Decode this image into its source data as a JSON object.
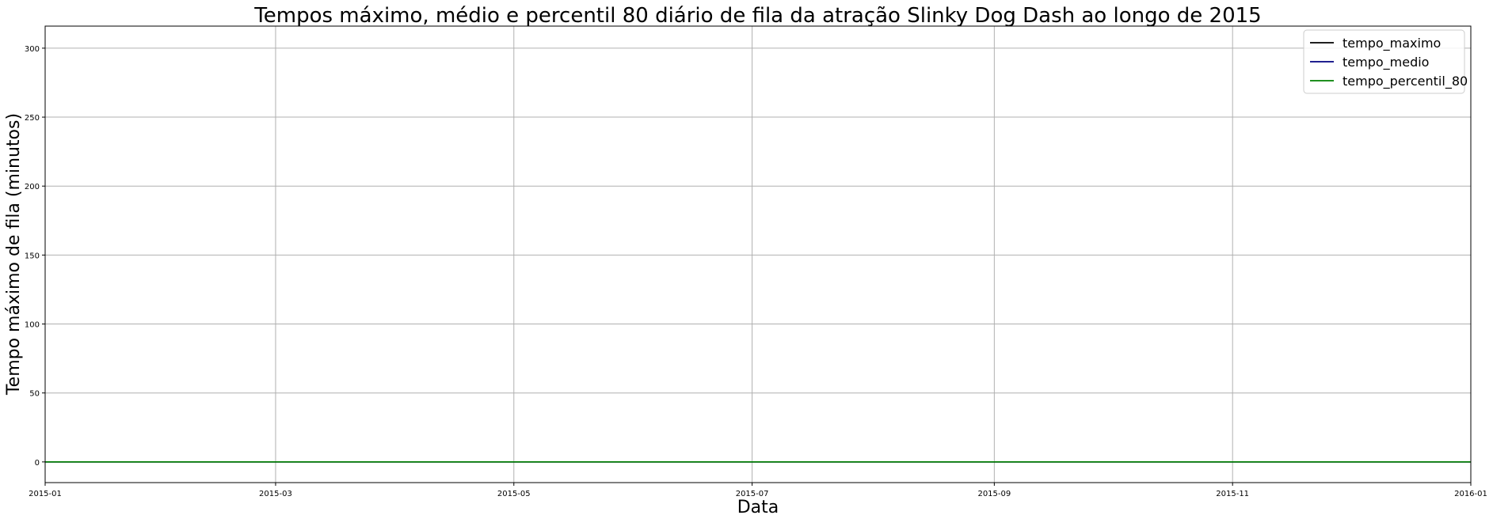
{
  "chart_data": {
    "type": "line",
    "title": "Tempos máximo, médio e percentil 80 diário de fila da atração Slinky Dog Dash ao longo de 2015",
    "xlabel": "Data",
    "ylabel": "Tempo máximo de fila (minutos)",
    "xlim": [
      "2015-01-01",
      "2016-01-01"
    ],
    "ylim": [
      -15,
      316
    ],
    "x_ticks": [
      "2015-01",
      "2015-03",
      "2015-05",
      "2015-07",
      "2015-09",
      "2015-11",
      "2016-01"
    ],
    "y_ticks": [
      0,
      50,
      100,
      150,
      200,
      250,
      300
    ],
    "grid": true,
    "legend_position": "top-right",
    "x": [
      "2015-01-01",
      "2016-01-01"
    ],
    "series": [
      {
        "name": "tempo_maximo",
        "color": "#000000",
        "values": [
          0,
          0
        ]
      },
      {
        "name": "tempo_medio",
        "color": "#000080",
        "values": [
          0,
          0
        ]
      },
      {
        "name": "tempo_percentil_80",
        "color": "#008000",
        "values": [
          0,
          0
        ]
      }
    ]
  }
}
